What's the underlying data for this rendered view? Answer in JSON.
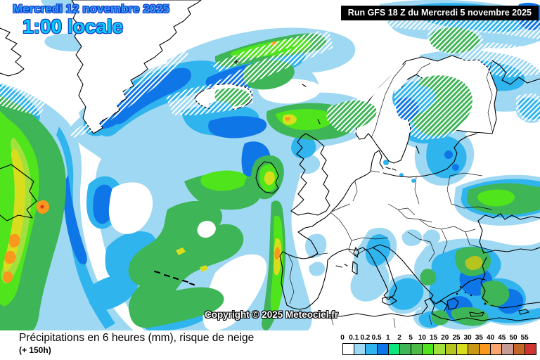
{
  "header": {
    "date_label": "Mercredi 12 novembre 2025",
    "time_label": "1:00 locale",
    "run_label": "Run GFS 18 Z du Mercredi 5 novembre 2025"
  },
  "map": {
    "copyright": "Copyright © 2025 Meteociel.fr"
  },
  "footer": {
    "caption": "Précipitations en 6 heures (mm), risque de neige",
    "lead_time": "(+ 150h)"
  },
  "legend": {
    "labels": [
      "0",
      "0.1",
      "0.2",
      "0.5",
      "1",
      "2",
      "5",
      "10",
      "15",
      "20",
      "25",
      "30",
      "35",
      "40",
      "45",
      "50",
      "55"
    ],
    "colors": [
      "#ffffff",
      "#9fd8f2",
      "#30b4ee",
      "#0f76e8",
      "#0ce87e",
      "#3eb556",
      "#4cbb45",
      "#50e41c",
      "#a2e03e",
      "#b5c41e",
      "#d8de1e",
      "#c89814",
      "#fa981e",
      "#faa470",
      "#c89a96",
      "#c2662a",
      "#d03430"
    ]
  },
  "colors": {
    "date_text": "#2d9cf5",
    "time_text": "#08ccf8",
    "text_outline": "#1334c8",
    "run_bar_bg": "#000000",
    "run_bar_text": "#ffffff",
    "snow_hatch": "#ffffff"
  }
}
